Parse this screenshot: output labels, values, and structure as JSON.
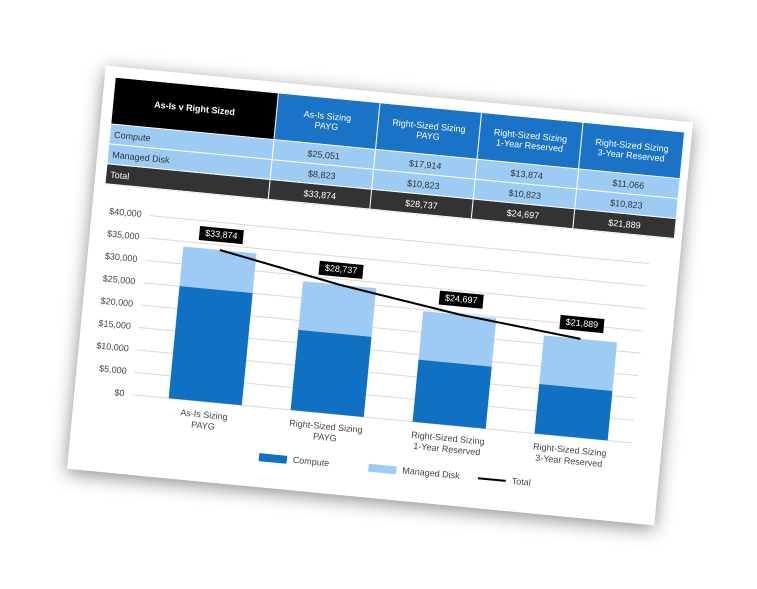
{
  "table": {
    "header": [
      "As-Is v Right Sized",
      "As-Is Sizing\nPAYG",
      "Right-Sized Sizing\nPAYG",
      "Right-Sized Sizing\n1-Year Reserved",
      "Right-Sized Sizing\n3-Year Reserved"
    ],
    "rows": [
      [
        "Compute",
        "$25,051",
        "$17,914",
        "$13,874",
        "$11,066"
      ],
      [
        "Managed Disk",
        "$8,823",
        "$10,823",
        "$10,823",
        "$10,823"
      ],
      [
        "Total",
        "$33,874",
        "$28,737",
        "$24,697",
        "$21,889"
      ]
    ]
  },
  "chart_data": {
    "type": "bar",
    "stacked": true,
    "categories": [
      "As-Is Sizing\nPAYG",
      "Right-Sized Sizing\nPAYG",
      "Right-Sized Sizing\n1-Year Reserved",
      "Right-Sized Sizing\n3-Year Reserved"
    ],
    "series": [
      {
        "name": "Compute",
        "color": "#1070c4",
        "values": [
          25051,
          17914,
          13874,
          11066
        ]
      },
      {
        "name": "Managed Disk",
        "color": "#9dcbf3",
        "values": [
          8823,
          10823,
          10823,
          10823
        ]
      },
      {
        "name": "Total",
        "type": "line",
        "color": "#000000",
        "values": [
          33874,
          28737,
          24697,
          21889
        ],
        "value_labels": [
          "$33,874",
          "$28,737",
          "$24,697",
          "$21,889"
        ]
      }
    ],
    "ylim": [
      0,
      40000
    ],
    "yticks": [
      {
        "value": 0,
        "label": "$0"
      },
      {
        "value": 5000,
        "label": "$5,000"
      },
      {
        "value": 10000,
        "label": "$10,000"
      },
      {
        "value": 15000,
        "label": "$15,000"
      },
      {
        "value": 20000,
        "label": "$20,000"
      },
      {
        "value": 25000,
        "label": "$25,000"
      },
      {
        "value": 30000,
        "label": "$30,000"
      },
      {
        "value": 35000,
        "label": "$35,000"
      },
      {
        "value": 40000,
        "label": "$40,000"
      }
    ],
    "grid": true,
    "legend": "bottom"
  }
}
